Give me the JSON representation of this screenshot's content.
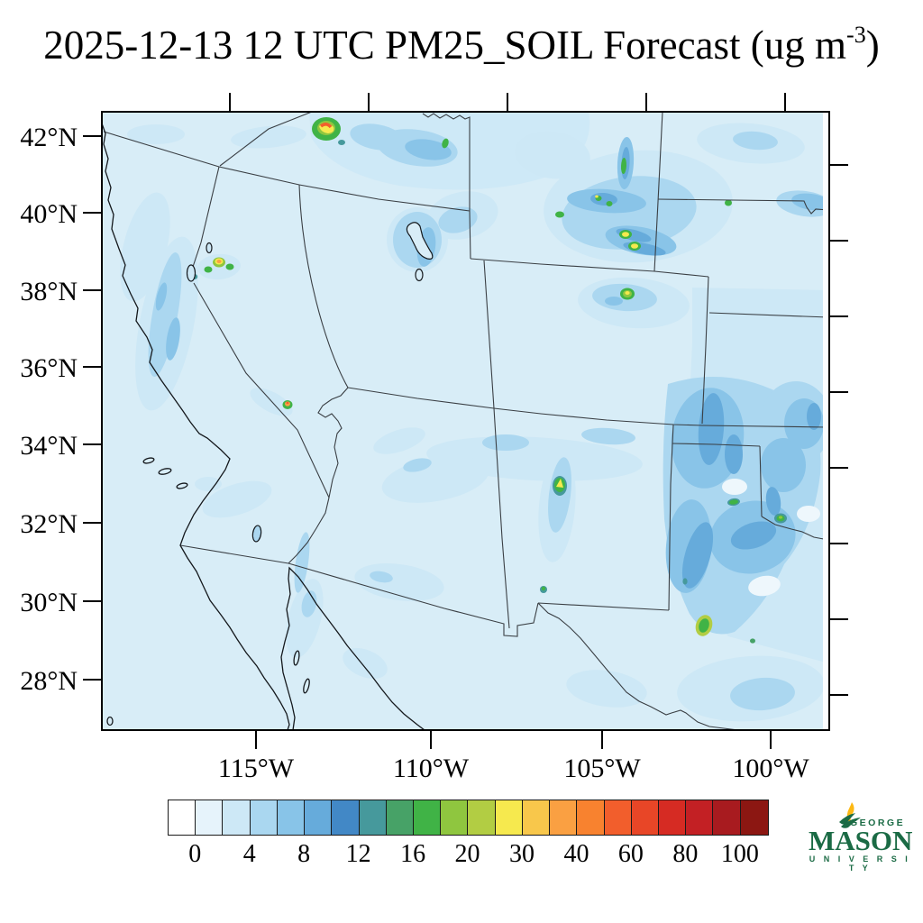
{
  "title": {
    "prefix": "2025-12-13 12 UTC PM25_SOIL Forecast (ug m",
    "exponent": "-3",
    "suffix": ")"
  },
  "axes": {
    "lat_ticks": [
      "42°N",
      "40°N",
      "38°N",
      "36°N",
      "34°N",
      "32°N",
      "30°N",
      "28°N"
    ],
    "lon_ticks": [
      "115°W",
      "110°W",
      "105°W",
      "100°W"
    ]
  },
  "colorbar": {
    "labels": [
      "0",
      "4",
      "8",
      "12",
      "16",
      "20",
      "30",
      "40",
      "60",
      "80",
      "100"
    ],
    "colors": [
      "#ffffff",
      "#e6f3fb",
      "#cde8f6",
      "#aad7f0",
      "#88c4e8",
      "#66abdb",
      "#4288c6",
      "#46999c",
      "#47a267",
      "#40b346",
      "#8fc63f",
      "#b2cd43",
      "#f6e94e",
      "#f8c74b",
      "#faa042",
      "#f8822f",
      "#f25e2c",
      "#e84627",
      "#d62b23",
      "#c32024",
      "#a81b1f",
      "#8c1712"
    ],
    "units": "ug m-3"
  },
  "logo": {
    "george": "GEORGE",
    "mason": "MASON",
    "university": "U N I V E R S I T Y",
    "green": "#1b6b45",
    "flame_yellow": "#fdb813"
  },
  "chart_data": {
    "type": "heatmap",
    "title": "2025-12-13 12 UTC PM25_SOIL Forecast (ug m-3)",
    "variable": "PM25_SOIL",
    "valid_time": "2025-12-13 12 UTC",
    "units": "ug m-3",
    "xlabel": "",
    "ylabel": "",
    "x_ticks_deg_west": [
      115,
      110,
      105,
      100
    ],
    "y_ticks_deg_north": [
      42,
      40,
      38,
      36,
      34,
      32,
      30,
      28
    ],
    "region": "Southwestern United States and northern Mexico (California to Texas panhandle)",
    "colorbar_boundaries": [
      0,
      2,
      4,
      6,
      8,
      10,
      12,
      14,
      16,
      18,
      20,
      25,
      30,
      35,
      40,
      50,
      60,
      70,
      80,
      90,
      100
    ],
    "background_level": "0-2 over nearly the whole domain",
    "notable_features": [
      {
        "area": "Idaho / Utah border near 42.3N 113.5W",
        "peak": "60-80 (orange-red arc with yellow-green halo)"
      },
      {
        "area": "Southwest Wyoming 41.3N 109.5W",
        "peak": "16-20 (green core in dark blue streak)"
      },
      {
        "area": "Central Wyoming 39.3N 105.8W grid",
        "peak": "25-35 (yellow cores in blue streaks)"
      },
      {
        "area": "Northern Nevada near 38.8N 116.5W",
        "peak": "40-60 (small orange spot with green ring)"
      },
      {
        "area": "Southern Nevada near 35.1N 114.2W",
        "peak": "40-60 (small orange spot)"
      },
      {
        "area": "Central Colorado near 39.4N",
        "peak": "25-35 (yellow-green spot)"
      },
      {
        "area": "Central New Mexico near 33N 105.5W",
        "peak": "25-35 (yellow spot with green ring)"
      },
      {
        "area": "West Texas / eastern New Mexico broad area",
        "peak": "8-12 (widespread 4-10 shield)"
      },
      {
        "area": "Southern Texas near 29.5N",
        "peak": "16-20 (green spot)"
      },
      {
        "area": "Oklahoma near 34.8N 99.5W",
        "peak": "16-20 (green spot)"
      },
      {
        "area": "California Sierra Nevada band",
        "peak": "4-8"
      }
    ]
  }
}
